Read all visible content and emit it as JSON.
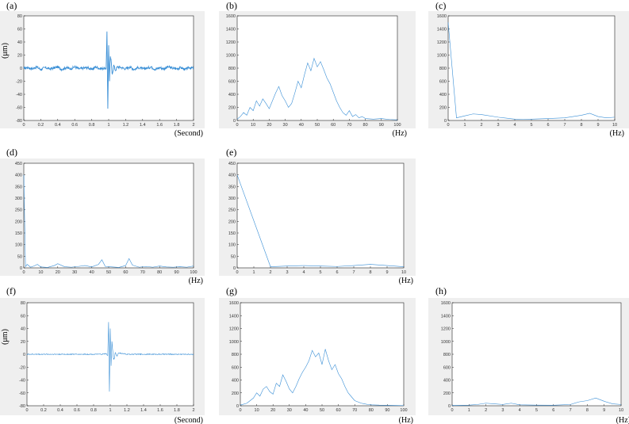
{
  "figure": {
    "line_color": "#3a8fd6",
    "bg_color": "#efefef"
  },
  "chart_data": [
    {
      "id": "a",
      "panel_label": "(a)",
      "type": "line",
      "xlim": [
        0,
        2
      ],
      "ylim": [
        -80,
        80
      ],
      "xticks": [
        "0",
        "0.2",
        "0.4",
        "0.6",
        "0.8",
        "1",
        "1.2",
        "1.4",
        "1.6",
        "1.8",
        "2"
      ],
      "yticks": [
        "80",
        "60",
        "40",
        "20",
        "0",
        "-20",
        "-40",
        "-60",
        "-80"
      ],
      "ylabel": "(μm)",
      "xlabel": "(Second)",
      "noise": 2.0,
      "x": [
        0,
        0.05,
        0.1,
        0.15,
        0.2,
        0.25,
        0.3,
        0.35,
        0.4,
        0.45,
        0.5,
        0.55,
        0.6,
        0.65,
        0.7,
        0.75,
        0.8,
        0.85,
        0.9,
        0.95,
        0.97,
        0.98,
        0.99,
        1.0,
        1.01,
        1.02,
        1.03,
        1.04,
        1.05,
        1.06,
        1.08,
        1.1,
        1.15,
        1.2,
        1.25,
        1.3,
        1.35,
        1.4,
        1.45,
        1.5,
        1.55,
        1.6,
        1.65,
        1.7,
        1.75,
        1.8,
        1.85,
        1.9,
        1.95,
        2.0
      ],
      "y": [
        0,
        1,
        -1,
        2,
        -2,
        1,
        -1,
        0,
        2,
        -2,
        1,
        -1,
        2,
        -1,
        0,
        1,
        -2,
        2,
        -1,
        0,
        -2,
        56,
        -62,
        35,
        -20,
        18,
        10,
        -8,
        -5,
        5,
        -4,
        2,
        1,
        -1,
        2,
        -2,
        1,
        -1,
        0,
        2,
        -2,
        1,
        -1,
        2,
        0,
        -1,
        1,
        -2,
        1,
        0
      ]
    },
    {
      "id": "b",
      "panel_label": "(b)",
      "type": "line",
      "xlim": [
        0,
        100
      ],
      "ylim": [
        0,
        1600
      ],
      "xticks": [
        "0",
        "10",
        "20",
        "30",
        "40",
        "50",
        "60",
        "70",
        "80",
        "90",
        "100"
      ],
      "yticks": [
        "1600",
        "1400",
        "1200",
        "1000",
        "800",
        "600",
        "400",
        "200",
        "0"
      ],
      "ylabel": "",
      "xlabel": "(Hz)",
      "noise": 0,
      "x": [
        0,
        2,
        4,
        6,
        8,
        10,
        12,
        14,
        16,
        18,
        20,
        22,
        24,
        26,
        28,
        30,
        32,
        34,
        36,
        38,
        40,
        42,
        44,
        46,
        48,
        50,
        52,
        54,
        56,
        58,
        60,
        62,
        64,
        66,
        68,
        70,
        72,
        74,
        76,
        78,
        80,
        85,
        90,
        95,
        100
      ],
      "y": [
        20,
        60,
        120,
        80,
        200,
        150,
        300,
        220,
        330,
        260,
        180,
        300,
        420,
        520,
        380,
        300,
        200,
        260,
        420,
        600,
        500,
        700,
        880,
        760,
        950,
        820,
        900,
        780,
        650,
        560,
        430,
        300,
        200,
        120,
        80,
        150,
        60,
        90,
        40,
        60,
        30,
        20,
        30,
        15,
        10
      ]
    },
    {
      "id": "c",
      "panel_label": "(c)",
      "type": "line",
      "xlim": [
        0,
        10
      ],
      "ylim": [
        0,
        1600
      ],
      "xticks": [
        "0",
        "1",
        "2",
        "3",
        "4",
        "5",
        "6",
        "7",
        "8",
        "9",
        "10"
      ],
      "yticks": [
        "1600",
        "1400",
        "1200",
        "1000",
        "800",
        "600",
        "400",
        "200",
        "0"
      ],
      "ylabel": "",
      "xlabel": "(Hz)",
      "noise": 0,
      "x": [
        0,
        0.5,
        1,
        1.5,
        2,
        3,
        4,
        4.5,
        5,
        6,
        7,
        7.5,
        8,
        8.5,
        9,
        9.5,
        10
      ],
      "y": [
        1500,
        40,
        70,
        100,
        90,
        50,
        20,
        15,
        20,
        30,
        40,
        60,
        80,
        110,
        60,
        40,
        50
      ]
    },
    {
      "id": "d",
      "panel_label": "(d)",
      "type": "line",
      "xlim": [
        0,
        100
      ],
      "ylim": [
        0,
        450
      ],
      "xticks": [
        "0",
        "10",
        "20",
        "30",
        "40",
        "50",
        "60",
        "70",
        "80",
        "90",
        "100"
      ],
      "yticks": [
        "450",
        "400",
        "350",
        "300",
        "250",
        "200",
        "150",
        "100",
        "50",
        "0"
      ],
      "ylabel": "",
      "xlabel": "(Hz)",
      "noise": 0,
      "x": [
        0,
        1,
        2,
        4,
        6,
        8,
        10,
        14,
        18,
        20,
        24,
        28,
        32,
        36,
        40,
        44,
        46,
        48,
        52,
        56,
        60,
        62,
        64,
        68,
        72,
        76,
        80,
        84,
        88,
        92,
        96,
        100
      ],
      "y": [
        400,
        5,
        15,
        3,
        8,
        15,
        4,
        2,
        10,
        18,
        5,
        3,
        6,
        10,
        4,
        15,
        35,
        6,
        4,
        2,
        10,
        40,
        12,
        3,
        6,
        3,
        8,
        4,
        3,
        5,
        3,
        8
      ]
    },
    {
      "id": "e",
      "panel_label": "(e)",
      "type": "line",
      "xlim": [
        0,
        10
      ],
      "ylim": [
        0,
        450
      ],
      "xticks": [
        "0",
        "1",
        "2",
        "3",
        "4",
        "5",
        "6",
        "7",
        "8",
        "9",
        "10"
      ],
      "yticks": [
        "450",
        "400",
        "350",
        "300",
        "250",
        "200",
        "150",
        "100",
        "50",
        "0"
      ],
      "ylabel": "",
      "xlabel": "(Hz)",
      "noise": 0,
      "x": [
        0,
        2,
        3,
        4,
        5,
        6,
        7,
        8,
        9,
        10
      ],
      "y": [
        400,
        5,
        8,
        10,
        8,
        6,
        10,
        15,
        10,
        5
      ]
    },
    {
      "id": "f",
      "panel_label": "(f)",
      "type": "line",
      "xlim": [
        0,
        2
      ],
      "ylim": [
        -80,
        80
      ],
      "xticks": [
        "0",
        "0.2",
        "0.4",
        "0.6",
        "0.8",
        "1",
        "1.2",
        "1.4",
        "1.6",
        "1.8",
        "2"
      ],
      "yticks": [
        "80",
        "60",
        "40",
        "20",
        "0",
        "-20",
        "-40",
        "-60",
        "-80"
      ],
      "ylabel": "(μm)",
      "xlabel": "(Second)",
      "noise": 0.7,
      "x": [
        0,
        0.1,
        0.2,
        0.3,
        0.4,
        0.5,
        0.6,
        0.7,
        0.8,
        0.9,
        0.95,
        0.97,
        0.98,
        0.99,
        1.0,
        1.01,
        1.02,
        1.03,
        1.04,
        1.05,
        1.06,
        1.08,
        1.1,
        1.2,
        1.3,
        1.4,
        1.5,
        1.6,
        1.7,
        1.8,
        1.9,
        2.0
      ],
      "y": [
        0,
        0,
        0,
        0,
        0,
        0,
        0,
        0,
        0,
        0,
        1,
        -2,
        50,
        -58,
        40,
        -18,
        20,
        5,
        -8,
        -6,
        3,
        -3,
        2,
        0,
        0,
        0,
        0,
        0,
        0,
        0,
        0,
        0
      ]
    },
    {
      "id": "g",
      "panel_label": "(g)",
      "type": "line",
      "xlim": [
        0,
        100
      ],
      "ylim": [
        0,
        1600
      ],
      "xticks": [
        "0",
        "10",
        "20",
        "30",
        "40",
        "50",
        "60",
        "70",
        "80",
        "90",
        "100"
      ],
      "yticks": [
        "1600",
        "1400",
        "1200",
        "1000",
        "800",
        "600",
        "400",
        "200",
        "0"
      ],
      "ylabel": "",
      "xlabel": "(Hz)",
      "noise": 0,
      "x": [
        0,
        4,
        6,
        8,
        10,
        12,
        14,
        16,
        18,
        20,
        22,
        24,
        26,
        28,
        30,
        32,
        34,
        36,
        38,
        40,
        42,
        44,
        46,
        48,
        50,
        52,
        54,
        56,
        58,
        60,
        62,
        64,
        66,
        68,
        70,
        72,
        74,
        76,
        78,
        80,
        85,
        90,
        95,
        100
      ],
      "y": [
        10,
        40,
        80,
        120,
        200,
        150,
        260,
        300,
        220,
        180,
        350,
        300,
        480,
        380,
        260,
        200,
        300,
        420,
        520,
        600,
        700,
        860,
        760,
        820,
        640,
        880,
        700,
        560,
        640,
        500,
        420,
        300,
        200,
        140,
        80,
        60,
        40,
        30,
        20,
        15,
        10,
        8,
        5,
        3
      ]
    },
    {
      "id": "h",
      "panel_label": "(h)",
      "type": "line",
      "xlim": [
        0,
        10
      ],
      "ylim": [
        0,
        1600
      ],
      "xticks": [
        "0",
        "1",
        "2",
        "3",
        "4",
        "5",
        "6",
        "7",
        "8",
        "9",
        "10"
      ],
      "yticks": [
        "1600",
        "1400",
        "1200",
        "1000",
        "800",
        "600",
        "400",
        "200",
        "0"
      ],
      "ylabel": "",
      "xlabel": "(Hz)",
      "noise": 0,
      "x": [
        0,
        1,
        1.5,
        2,
        2.5,
        3,
        3.5,
        4,
        5,
        6,
        7,
        7.5,
        8,
        8.5,
        9,
        9.5,
        10
      ],
      "y": [
        5,
        10,
        20,
        40,
        30,
        20,
        40,
        15,
        10,
        8,
        20,
        60,
        80,
        120,
        70,
        30,
        20
      ]
    }
  ]
}
